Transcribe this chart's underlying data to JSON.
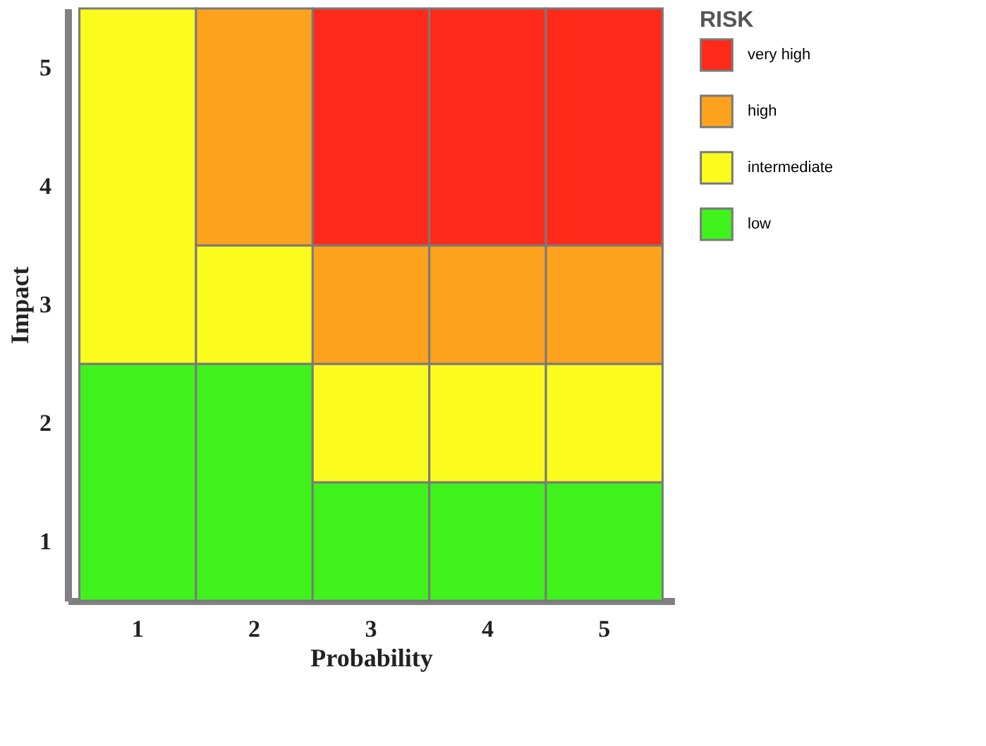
{
  "chart_data": {
    "type": "bar",
    "stacked": true,
    "xlabel": "Probability",
    "ylabel": "Impact",
    "legend_title": "RISK",
    "legend": "right",
    "grid": false,
    "categories": [
      "1",
      "2",
      "3",
      "4",
      "5"
    ],
    "ylim": [
      0,
      5
    ],
    "yticks": [
      {
        "value": 0.5,
        "label": "1"
      },
      {
        "value": 1.5,
        "label": "2"
      },
      {
        "value": 2.5,
        "label": "3"
      },
      {
        "value": 3.5,
        "label": "4"
      },
      {
        "value": 4.5,
        "label": "5"
      }
    ],
    "series": [
      {
        "name": "low",
        "color": "#3ff21c",
        "values": [
          2,
          2,
          1,
          1,
          1
        ]
      },
      {
        "name": "intermediate",
        "color": "#fbfb1e",
        "values": [
          3,
          1,
          1,
          1,
          1
        ]
      },
      {
        "name": "high",
        "color": "#fca21d",
        "values": [
          null,
          2,
          1,
          1,
          1
        ]
      },
      {
        "name": "very high",
        "color": "#ff2a1a",
        "values": [
          null,
          null,
          2,
          2,
          2
        ]
      }
    ]
  }
}
